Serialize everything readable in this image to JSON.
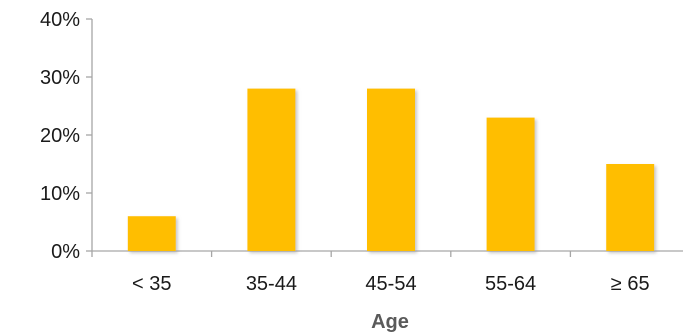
{
  "chart_data": {
    "type": "bar",
    "title": "",
    "xlabel": "Age",
    "ylabel": "",
    "categories": [
      "< 35",
      "35-44",
      "45-54",
      "55-64",
      "≥ 65"
    ],
    "values": [
      6,
      28,
      28,
      23,
      15
    ],
    "unit": "%",
    "ylim": [
      0,
      40
    ],
    "yticks": [
      "0%",
      "10%",
      "20%",
      "30%",
      "40%"
    ],
    "ytick_values": [
      0,
      10,
      20,
      30,
      40
    ],
    "grid": false,
    "legend": "none",
    "colors": {
      "bar": "#FFBE00",
      "bar_shadow": "#C8C8C8",
      "axis": "#A6A6A6"
    }
  }
}
